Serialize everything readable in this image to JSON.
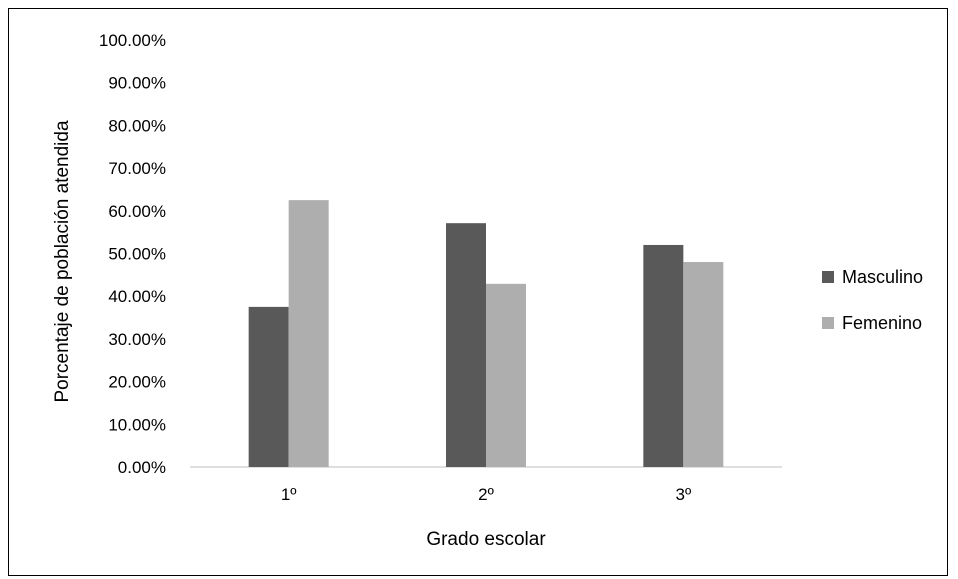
{
  "chart_data": {
    "type": "bar",
    "categories": [
      "1º",
      "2º",
      "3º"
    ],
    "series": [
      {
        "name": "Masculino",
        "values": [
          37.5,
          57.1,
          52.0
        ],
        "color": "#595959"
      },
      {
        "name": "Femenino",
        "values": [
          62.5,
          42.9,
          48.0
        ],
        "color": "#aeaeae"
      }
    ],
    "xlabel": "Grado escolar",
    "ylabel": "Porcentaje de población atendida",
    "ylim": [
      0,
      100
    ],
    "yticks": [
      "0.00%",
      "10.00%",
      "20.00%",
      "30.00%",
      "40.00%",
      "50.00%",
      "60.00%",
      "70.00%",
      "80.00%",
      "90.00%",
      "100.00%"
    ],
    "grid": false,
    "legend_position": "right"
  }
}
